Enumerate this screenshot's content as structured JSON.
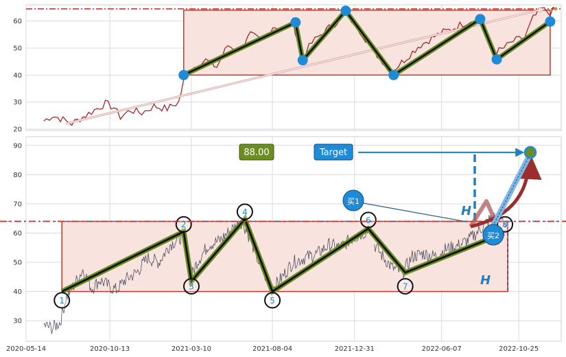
{
  "chart_data": [
    {
      "type": "line",
      "panel": "top",
      "yticks": [
        20,
        30,
        40,
        50,
        60
      ],
      "ylim": [
        19.5,
        66
      ],
      "xlim": [
        "2020-05-14",
        "2023-01-10"
      ],
      "grid": true,
      "colors": {
        "price": "#a02828",
        "box_fill": "#f9e3de",
        "box_edge": "#c0392b",
        "wave": "#6b8e23",
        "dot": "#1f8ad6",
        "dashline": "#c0392b"
      },
      "resistance_line": 64.5,
      "box": {
        "x0": "2021-02-24",
        "x1": "2022-12-21",
        "y0": 40,
        "y1": 64
      },
      "wave_points": [
        {
          "x": "2021-02-24",
          "y": 40
        },
        {
          "x": "2021-09-15",
          "y": 59.5
        },
        {
          "x": "2021-09-28",
          "y": 45.5
        },
        {
          "x": "2021-12-15",
          "y": 63.8
        },
        {
          "x": "2022-03-12",
          "y": 40
        },
        {
          "x": "2022-08-16",
          "y": 60.7
        },
        {
          "x": "2022-09-15",
          "y": 45.8
        },
        {
          "x": "2022-12-21",
          "y": 59.8
        }
      ],
      "trend_arrow": {
        "from": {
          "x": "2020-07-25",
          "y": 22
        },
        "to": {
          "x": "2022-12-10",
          "y": 64.5
        }
      },
      "series": [
        {
          "values": [
            {
              "x": "2020-06-15",
              "y": 23
            },
            {
              "x": "2020-07-01",
              "y": 25
            },
            {
              "x": "2020-07-20",
              "y": 23.5
            },
            {
              "x": "2020-08-05",
              "y": 22
            },
            {
              "x": "2020-08-25",
              "y": 24.5
            },
            {
              "x": "2020-09-15",
              "y": 27
            },
            {
              "x": "2020-10-05",
              "y": 29.5
            },
            {
              "x": "2020-10-20",
              "y": 28
            },
            {
              "x": "2020-11-01",
              "y": 24.5
            },
            {
              "x": "2020-11-20",
              "y": 27
            },
            {
              "x": "2020-12-10",
              "y": 26
            },
            {
              "x": "2021-01-01",
              "y": 28.5
            },
            {
              "x": "2021-01-25",
              "y": 27.5
            },
            {
              "x": "2021-02-15",
              "y": 30
            },
            {
              "x": "2021-02-28",
              "y": 41
            },
            {
              "x": "2021-03-15",
              "y": 43
            },
            {
              "x": "2021-04-05",
              "y": 45.5
            },
            {
              "x": "2021-04-25",
              "y": 43
            },
            {
              "x": "2021-05-15",
              "y": 51
            },
            {
              "x": "2021-06-05",
              "y": 49
            },
            {
              "x": "2021-06-25",
              "y": 55
            },
            {
              "x": "2021-07-15",
              "y": 52.5
            },
            {
              "x": "2021-08-05",
              "y": 58
            },
            {
              "x": "2021-08-25",
              "y": 57
            },
            {
              "x": "2021-09-10",
              "y": 59.5
            },
            {
              "x": "2021-09-28",
              "y": 47
            },
            {
              "x": "2021-10-15",
              "y": 52
            },
            {
              "x": "2021-11-05",
              "y": 56
            },
            {
              "x": "2021-11-25",
              "y": 59
            },
            {
              "x": "2021-12-15",
              "y": 62.5
            },
            {
              "x": "2022-01-05",
              "y": 58
            },
            {
              "x": "2022-01-25",
              "y": 52
            },
            {
              "x": "2022-02-15",
              "y": 46
            },
            {
              "x": "2022-03-12",
              "y": 42
            },
            {
              "x": "2022-04-05",
              "y": 46.5
            },
            {
              "x": "2022-04-25",
              "y": 50.5
            },
            {
              "x": "2022-05-15",
              "y": 53
            },
            {
              "x": "2022-06-05",
              "y": 55.5
            },
            {
              "x": "2022-06-25",
              "y": 57
            },
            {
              "x": "2022-07-15",
              "y": 59
            },
            {
              "x": "2022-08-10",
              "y": 61
            },
            {
              "x": "2022-08-25",
              "y": 56
            },
            {
              "x": "2022-09-10",
              "y": 48
            },
            {
              "x": "2022-09-28",
              "y": 50
            },
            {
              "x": "2022-10-15",
              "y": 52.5
            },
            {
              "x": "2022-11-05",
              "y": 54
            },
            {
              "x": "2022-11-20",
              "y": 61
            },
            {
              "x": "2022-12-05",
              "y": 64.5
            },
            {
              "x": "2022-12-21",
              "y": 63
            },
            {
              "x": "2022-12-31",
              "y": 64.5
            }
          ]
        }
      ]
    },
    {
      "type": "line",
      "panel": "bottom",
      "yticks": [
        30,
        40,
        50,
        60,
        70,
        80,
        90
      ],
      "ylim": [
        23,
        93
      ],
      "xlim": [
        "2020-05-14",
        "2023-01-10"
      ],
      "xticks": [
        "2020-05-14",
        "2020-10-13",
        "2021-03-10",
        "2021-08-04",
        "2021-12-31",
        "2022-06-07",
        "2022-10-25"
      ],
      "grid": true,
      "colors": {
        "price": "#4a5060",
        "box_fill": "#f9e3de",
        "box_edge": "#c0392b",
        "wave": "#6b8e23",
        "circle": "#111111",
        "label": "#1f8ad6",
        "arrow_red": "#9b2d2d",
        "blue_dash": "#1f7fc0",
        "badge_green": "#6b8e23",
        "badge_blue": "#1f8ad6"
      },
      "resistance_line": 64,
      "box": {
        "x0": "2020-07-18",
        "x1": "2022-10-05",
        "y0": 40,
        "y1": 64
      },
      "wave_points": [
        {
          "label": "1",
          "x": "2020-07-18",
          "y": 40
        },
        {
          "label": "2",
          "x": "2021-02-24",
          "y": 60.5
        },
        {
          "label": "3",
          "x": "2021-03-10",
          "y": 43.5
        },
        {
          "label": "4",
          "x": "2021-06-15",
          "y": 64.8
        },
        {
          "label": "5",
          "x": "2021-08-04",
          "y": 40
        },
        {
          "label": "6",
          "x": "2022-01-25",
          "y": 61.5
        },
        {
          "label": "7",
          "x": "2022-04-02",
          "y": 46.5
        },
        {
          "label": "8",
          "x": "2022-09-28",
          "y": 60
        }
      ],
      "label_positions": [
        {
          "label": "1",
          "x": "2020-07-18",
          "y": 37
        },
        {
          "label": "2",
          "x": "2021-02-24",
          "y": 63
        },
        {
          "label": "3",
          "x": "2021-03-10",
          "y": 41.8
        },
        {
          "label": "4",
          "x": "2021-06-15",
          "y": 67.3
        },
        {
          "label": "5",
          "x": "2021-08-04",
          "y": 37
        },
        {
          "label": "6",
          "x": "2022-01-25",
          "y": 64.5
        },
        {
          "label": "7",
          "x": "2022-04-02",
          "y": 41.8
        },
        {
          "label": "8",
          "x": "2022-09-30",
          "y": 63
        }
      ],
      "series": [
        {
          "values": [
            {
              "x": "2020-06-15",
              "y": 28.5
            },
            {
              "x": "2020-07-01",
              "y": 27.5
            },
            {
              "x": "2020-07-15",
              "y": 29.5
            },
            {
              "x": "2020-07-25",
              "y": 37.5
            },
            {
              "x": "2020-08-10",
              "y": 42.5
            },
            {
              "x": "2020-08-25",
              "y": 47.5
            },
            {
              "x": "2020-09-10",
              "y": 41
            },
            {
              "x": "2020-09-25",
              "y": 44
            },
            {
              "x": "2020-10-10",
              "y": 42
            },
            {
              "x": "2020-10-25",
              "y": 40.5
            },
            {
              "x": "2020-11-10",
              "y": 44
            },
            {
              "x": "2020-12-01",
              "y": 46.5
            },
            {
              "x": "2020-12-20",
              "y": 51.5
            },
            {
              "x": "2021-01-10",
              "y": 50
            },
            {
              "x": "2021-01-30",
              "y": 56
            },
            {
              "x": "2021-02-15",
              "y": 58
            },
            {
              "x": "2021-02-26",
              "y": 60
            },
            {
              "x": "2021-03-08",
              "y": 44
            },
            {
              "x": "2021-03-20",
              "y": 50
            },
            {
              "x": "2021-04-10",
              "y": 56
            },
            {
              "x": "2021-05-01",
              "y": 57.5
            },
            {
              "x": "2021-05-20",
              "y": 61
            },
            {
              "x": "2021-06-10",
              "y": 64
            },
            {
              "x": "2021-06-25",
              "y": 58
            },
            {
              "x": "2021-07-10",
              "y": 50
            },
            {
              "x": "2021-07-25",
              "y": 44
            },
            {
              "x": "2021-08-04",
              "y": 41
            },
            {
              "x": "2021-08-20",
              "y": 44.5
            },
            {
              "x": "2021-09-10",
              "y": 50
            },
            {
              "x": "2021-10-01",
              "y": 51.5
            },
            {
              "x": "2021-10-25",
              "y": 53
            },
            {
              "x": "2021-11-15",
              "y": 56
            },
            {
              "x": "2021-12-05",
              "y": 55
            },
            {
              "x": "2021-12-25",
              "y": 58
            },
            {
              "x": "2022-01-15",
              "y": 60
            },
            {
              "x": "2022-01-25",
              "y": 61
            }
          ]
        },
        {
          "values": [
            {
              "x": "2022-02-05",
              "y": 56
            },
            {
              "x": "2022-02-20",
              "y": 52
            },
            {
              "x": "2022-03-10",
              "y": 48
            },
            {
              "x": "2022-03-28",
              "y": 46.5
            },
            {
              "x": "2022-04-15",
              "y": 52
            },
            {
              "x": "2022-05-05",
              "y": 53
            },
            {
              "x": "2022-05-25",
              "y": 52
            },
            {
              "x": "2022-06-15",
              "y": 54.5
            },
            {
              "x": "2022-07-05",
              "y": 55.5
            },
            {
              "x": "2022-07-25",
              "y": 57.5
            },
            {
              "x": "2022-08-15",
              "y": 61
            },
            {
              "x": "2022-09-01",
              "y": 64.5
            },
            {
              "x": "2022-09-20",
              "y": 66
            },
            {
              "x": "2022-10-02",
              "y": 63
            }
          ]
        }
      ],
      "badges": {
        "price": "88.00",
        "target": "Target",
        "buy1": "买1",
        "buy2": "买2"
      },
      "annotations": {
        "height_marker": "H"
      }
    }
  ]
}
